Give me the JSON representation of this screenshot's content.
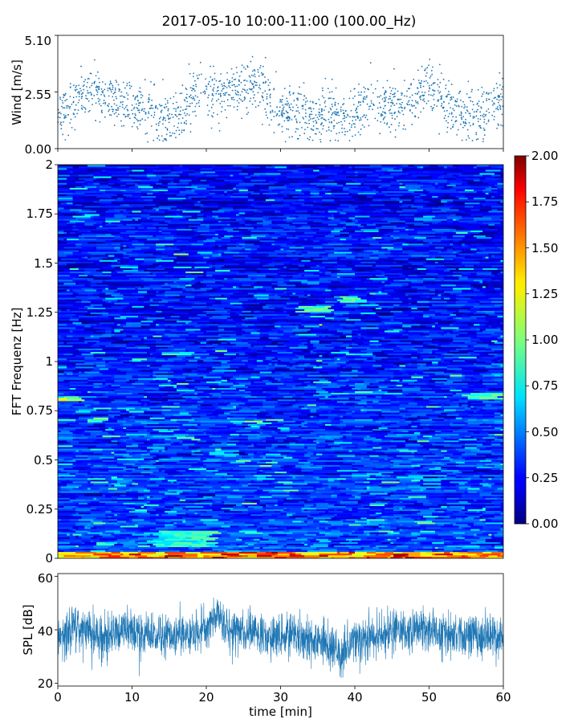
{
  "chart_data": [
    {
      "type": "scatter",
      "title": "2017-05-10 10:00-11:00 (100.00_Hz)",
      "xlabel": "",
      "ylabel": "Wind [m/s]",
      "xlim": [
        0,
        60
      ],
      "ylim": [
        0,
        5.1
      ],
      "yticks": [
        "0.00",
        "2.55",
        "5.10"
      ],
      "grid": false,
      "series_color": "#1f77b4",
      "trend": {
        "x": [
          0,
          2,
          3,
          5,
          7,
          9,
          11,
          13,
          15,
          17,
          18,
          19,
          20,
          22,
          24,
          26,
          27,
          29,
          31,
          33,
          35,
          36,
          37,
          39,
          41,
          43,
          45,
          47,
          49,
          50,
          51,
          53,
          55,
          57,
          59,
          60
        ],
        "y": [
          1.6,
          1.8,
          2.6,
          2.7,
          2.1,
          2.0,
          1.8,
          1.6,
          1.3,
          1.6,
          2.3,
          2.9,
          2.6,
          2.6,
          2.7,
          2.8,
          2.9,
          2.0,
          1.6,
          1.6,
          1.4,
          1.7,
          1.4,
          1.4,
          1.9,
          2.1,
          1.8,
          1.8,
          2.6,
          3.0,
          2.6,
          1.9,
          1.6,
          1.5,
          2.1,
          2.0
        ]
      },
      "spread": 0.6,
      "point_count": 1600
    },
    {
      "type": "heatmap",
      "xlabel": "",
      "ylabel": "FFT Frequenz [Hz]",
      "xlim": [
        0,
        60
      ],
      "ylim": [
        0,
        2
      ],
      "yticks": [
        "0",
        "0.25",
        "0.5",
        "0.75",
        "1",
        "1.25",
        "1.5",
        "1.75",
        "2"
      ],
      "colormap": "jet",
      "colorbar": {
        "vmin": 0,
        "vmax": 2,
        "ticks": [
          "0.00",
          "0.25",
          "0.50",
          "0.75",
          "1.00",
          "1.25",
          "1.50",
          "1.75",
          "2.00"
        ]
      },
      "time_bins": 150,
      "freq_bins": 240,
      "background_level": 0.35,
      "highlights": [
        {
          "t": [
            0,
            4
          ],
          "f": [
            0.8,
            0.82
          ],
          "value": 1.1
        },
        {
          "t": [
            4,
            7
          ],
          "f": [
            0.7,
            0.72
          ],
          "value": 0.95
        },
        {
          "t": [
            33,
            37
          ],
          "f": [
            1.25,
            1.28
          ],
          "value": 0.9
        },
        {
          "t": [
            38,
            41
          ],
          "f": [
            1.3,
            1.33
          ],
          "value": 0.85
        },
        {
          "t": [
            55,
            60
          ],
          "f": [
            0.81,
            0.84
          ],
          "value": 0.9
        },
        {
          "t": [
            13,
            21
          ],
          "f": [
            0.06,
            0.14
          ],
          "value": 0.8
        },
        {
          "t": [
            0,
            60
          ],
          "f": [
            0,
            0.03
          ],
          "value": 1.4
        }
      ]
    },
    {
      "type": "line",
      "xlabel": "time [min]",
      "ylabel": "SPL [dB]",
      "xlim": [
        0,
        60
      ],
      "ylim": [
        19,
        61
      ],
      "xticks": [
        "0",
        "10",
        "20",
        "30",
        "40",
        "50",
        "60"
      ],
      "yticks": [
        "20",
        "40",
        "60"
      ],
      "grid": false,
      "series_color": "#1f77b4",
      "trend": {
        "x": [
          0,
          3,
          6,
          9,
          12,
          15,
          18,
          20,
          21.5,
          23,
          26,
          30,
          33,
          36,
          38,
          39,
          42,
          45,
          48,
          51,
          54,
          57,
          60
        ],
        "y": [
          38,
          40,
          38,
          40,
          38,
          37,
          39,
          40,
          46,
          40,
          39,
          37,
          38,
          36,
          29,
          34,
          37,
          39,
          40,
          39,
          37,
          38,
          38
        ]
      },
      "spread": 4,
      "sample_count": 2400
    }
  ]
}
